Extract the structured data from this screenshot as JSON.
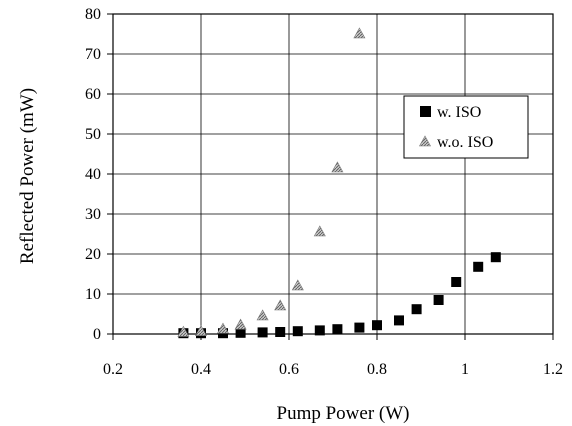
{
  "chart_data": {
    "type": "scatter",
    "title": "",
    "xlabel": "Pump Power (W)",
    "ylabel": "Reflected Power (mW)",
    "xlim": [
      0.2,
      1.2
    ],
    "ylim": [
      0,
      80
    ],
    "xticks": [
      "0.2",
      "0.4",
      "0.6",
      "0.8",
      "1",
      "1.2"
    ],
    "yticks": [
      "0",
      "10",
      "20",
      "30",
      "40",
      "50",
      "60",
      "70",
      "80"
    ],
    "grid": true,
    "legend": "right",
    "series": [
      {
        "name": "w. ISO",
        "marker": "square",
        "color": "#000000",
        "x": [
          0.36,
          0.4,
          0.45,
          0.49,
          0.54,
          0.58,
          0.62,
          0.67,
          0.71,
          0.76,
          0.8,
          0.85,
          0.89,
          0.94,
          0.98,
          1.03,
          1.07
        ],
        "y": [
          0.2,
          0.2,
          0.2,
          0.3,
          0.4,
          0.5,
          0.7,
          0.9,
          1.2,
          1.6,
          2.2,
          3.4,
          6.2,
          8.5,
          13.0,
          16.8,
          19.2
        ]
      },
      {
        "name": "w.o. ISO",
        "marker": "triangle",
        "color": "#9a9a9a",
        "x": [
          0.36,
          0.4,
          0.45,
          0.49,
          0.54,
          0.58,
          0.62,
          0.67,
          0.71,
          0.76
        ],
        "y": [
          0.4,
          0.6,
          1.2,
          2.2,
          4.5,
          7.0,
          12.0,
          25.5,
          41.5,
          75.0
        ]
      }
    ]
  }
}
